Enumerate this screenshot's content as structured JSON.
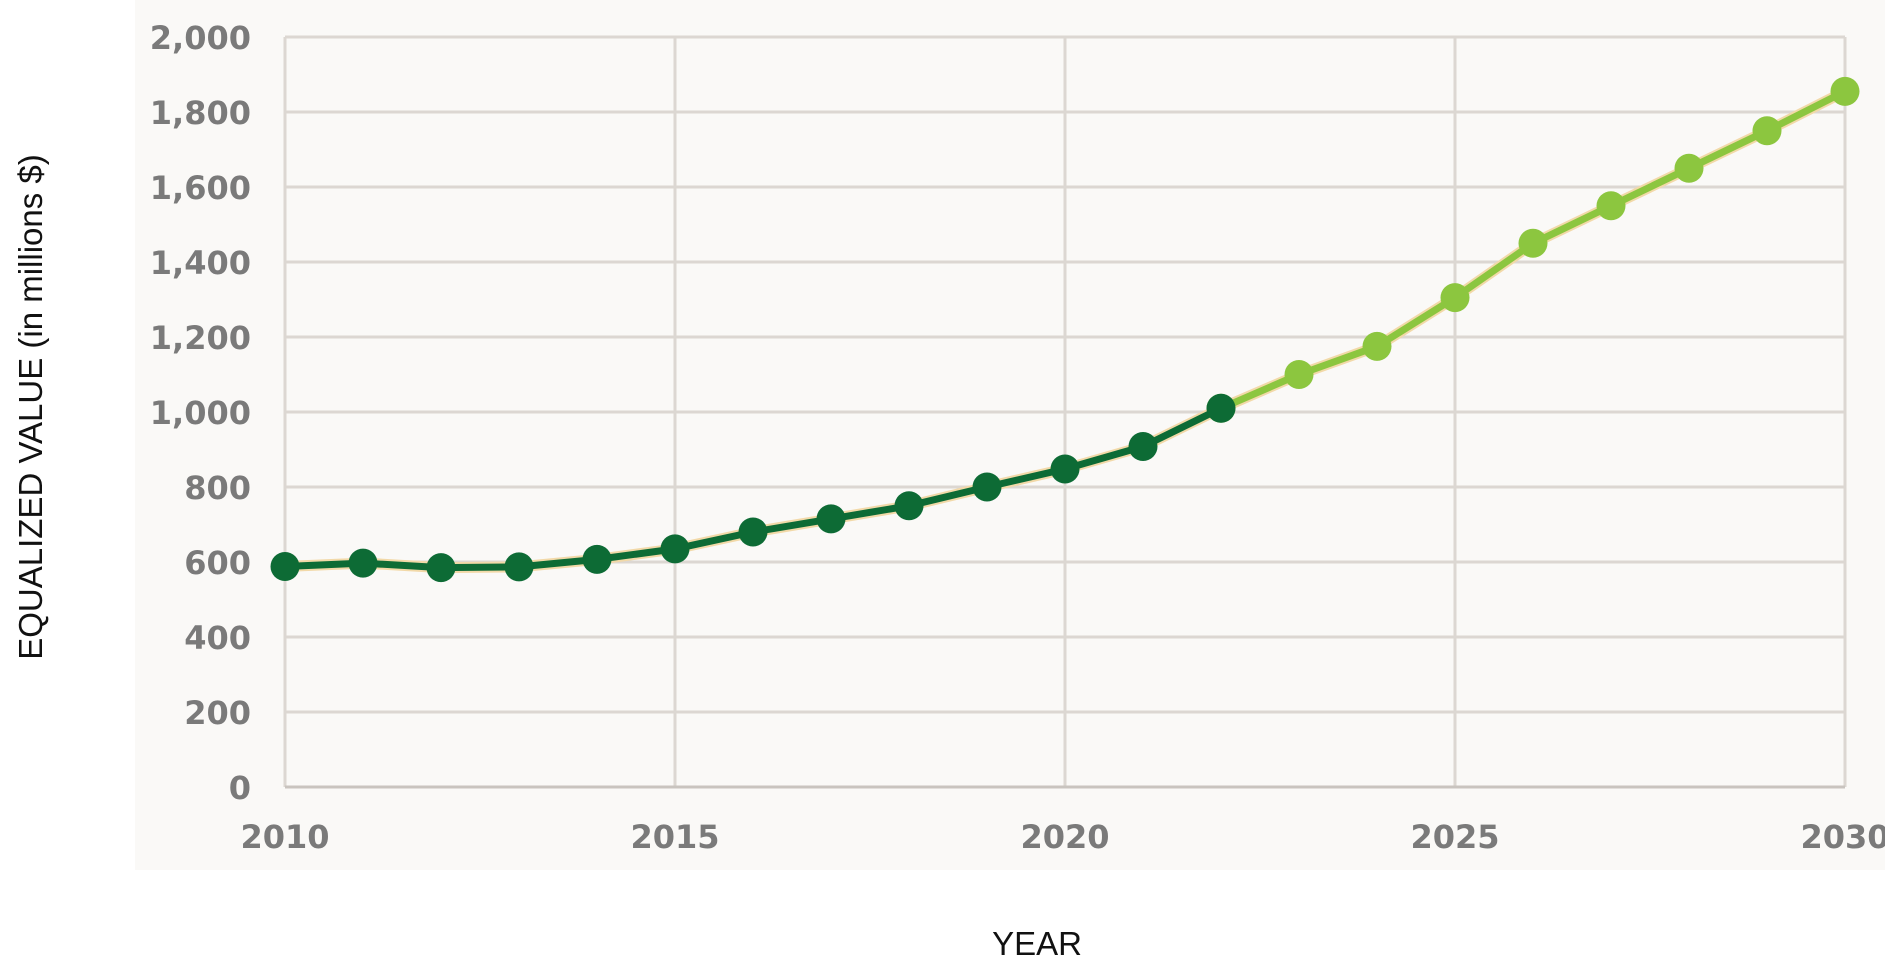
{
  "chart_data": {
    "type": "line",
    "title": "",
    "xlabel": "YEAR",
    "ylabel": "EQUALIZED VALUE (in millions $)",
    "xlim": [
      2010,
      2030
    ],
    "ylim": [
      0,
      2000
    ],
    "x_ticks": [
      "2010",
      "2015",
      "2020",
      "2025",
      "2030"
    ],
    "y_ticks": [
      "0",
      "200",
      "400",
      "600",
      "800",
      "1,000",
      "1,200",
      "1,400",
      "1,600",
      "1,800",
      "2,000"
    ],
    "grid": true,
    "legend": "none",
    "series": [
      {
        "color": "#0d6b35",
        "x": [
          2010,
          2011,
          2012,
          2013,
          2014,
          2015,
          2016,
          2017,
          2018,
          2019,
          2020,
          2021,
          2022
        ],
        "values": [
          588,
          597,
          585,
          587,
          607,
          635,
          680,
          715,
          750,
          800,
          848,
          908,
          1010
        ]
      },
      {
        "color": "#8cc63f",
        "x": [
          2022,
          2023,
          2024,
          2025,
          2026,
          2027,
          2028,
          2029,
          2030
        ],
        "values": [
          1010,
          1100,
          1175,
          1305,
          1450,
          1550,
          1650,
          1750,
          1855
        ]
      }
    ]
  }
}
